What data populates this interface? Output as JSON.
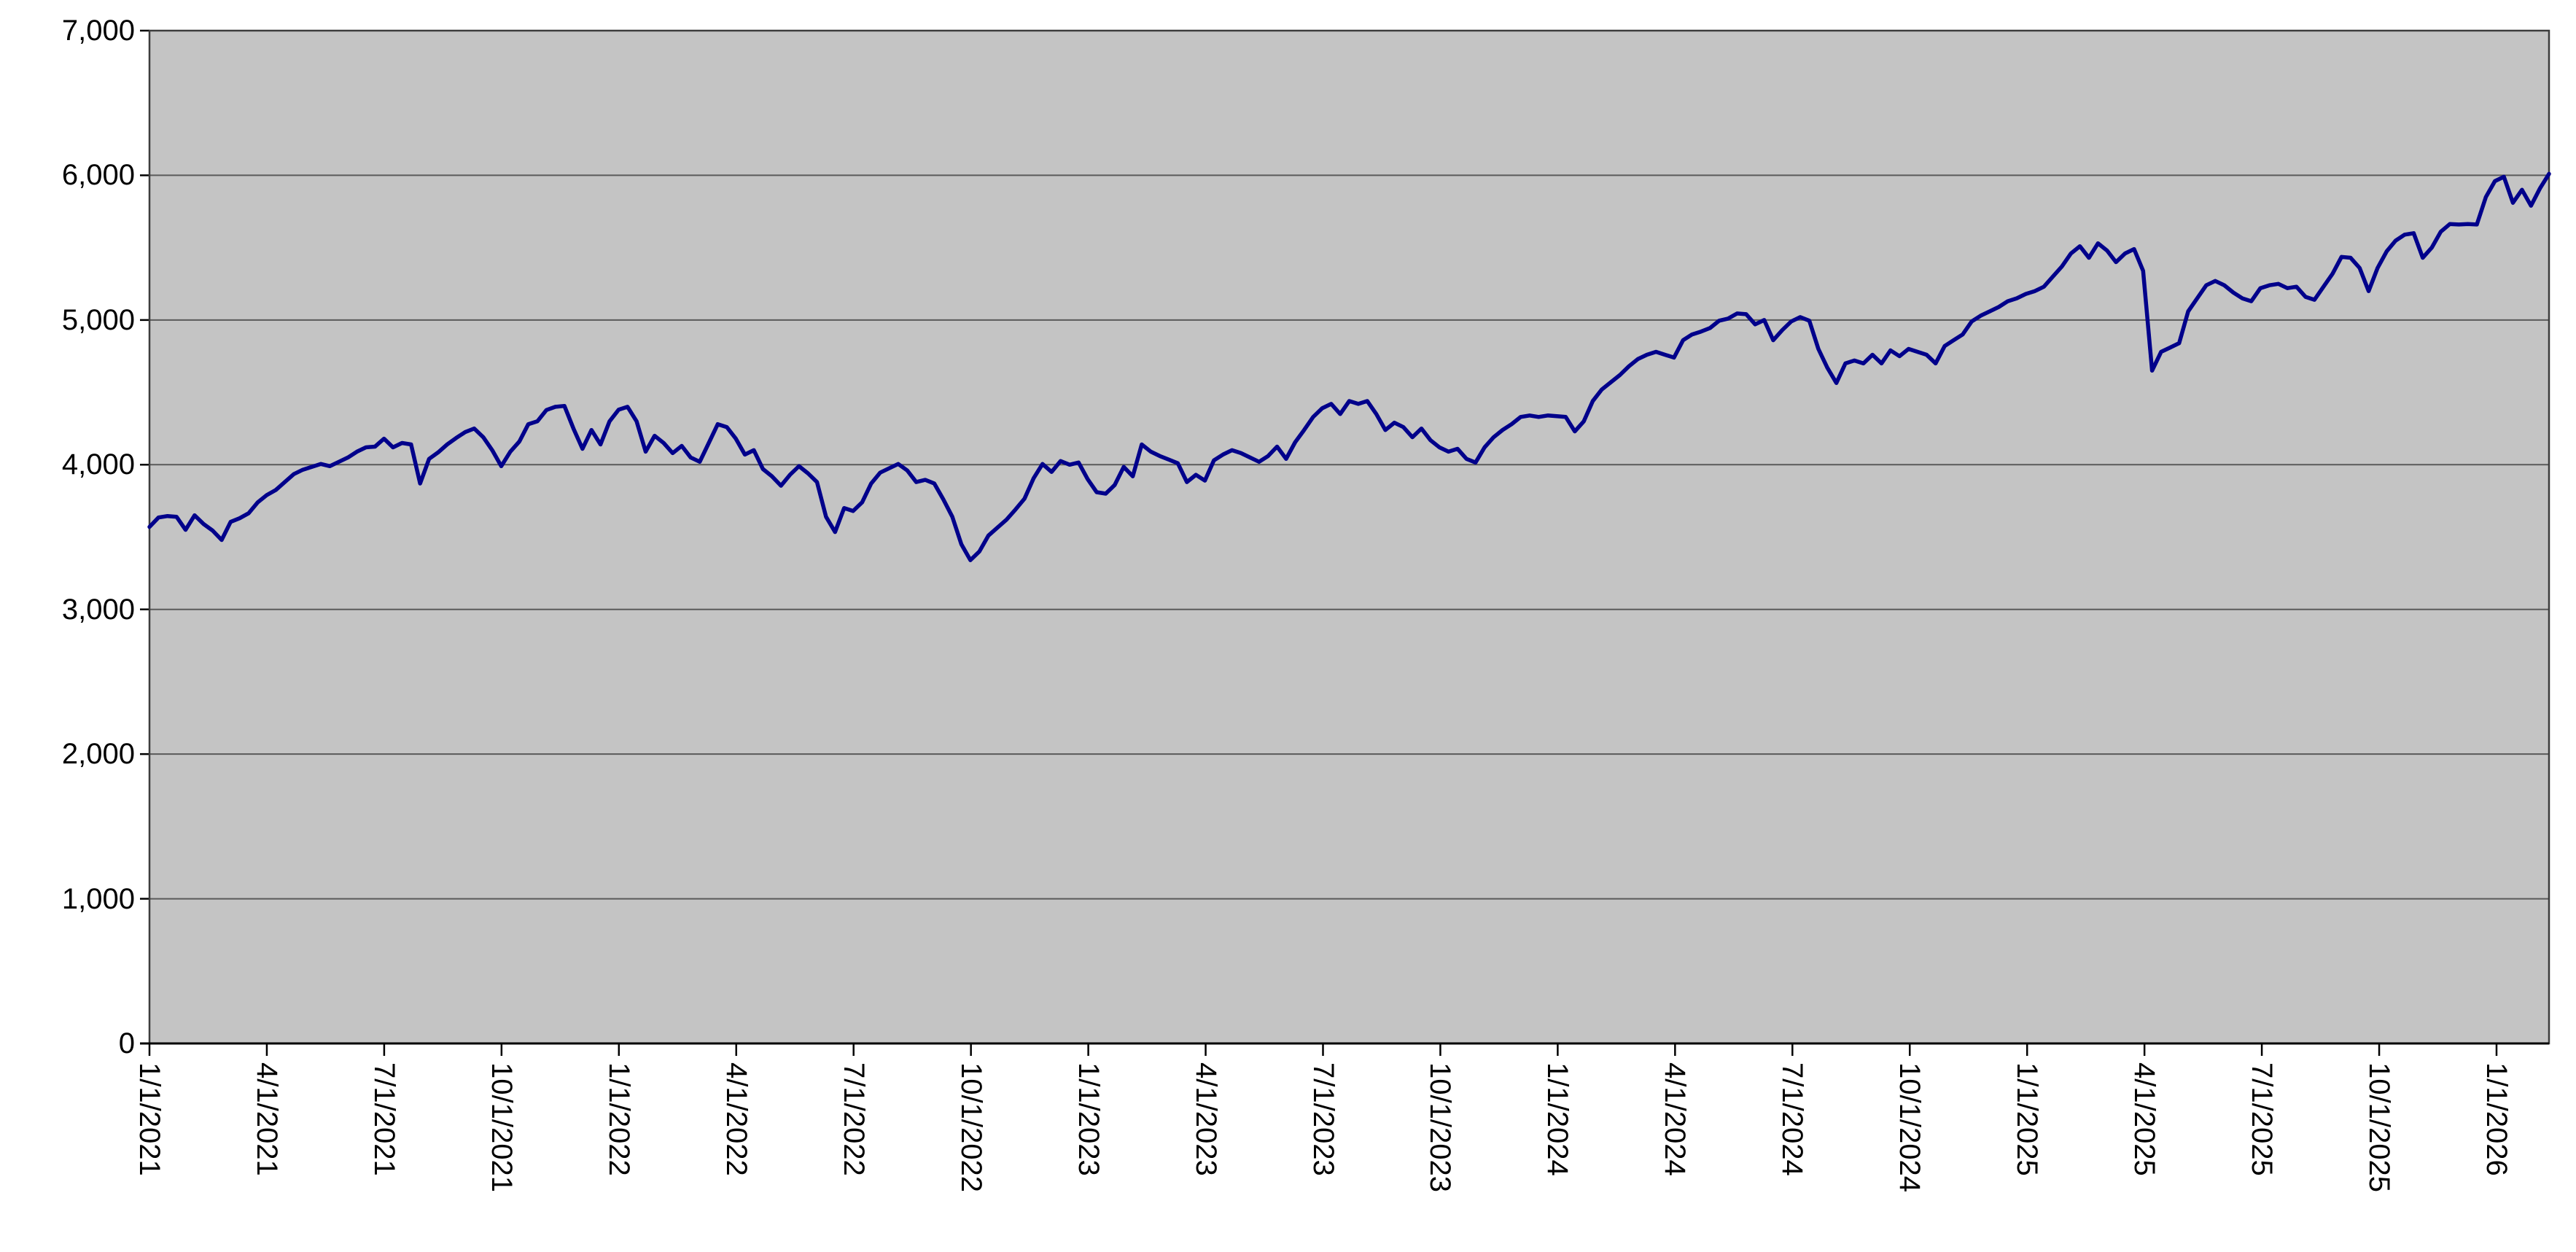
{
  "chart_data": {
    "type": "line",
    "x_start": "1/1/2021",
    "x_interval": "weekly",
    "x_tick_labels": [
      "1/1/2021",
      "4/1/2021",
      "7/1/2021",
      "10/1/2021",
      "1/1/2022",
      "4/1/2022",
      "7/1/2022",
      "10/1/2022",
      "1/1/2023",
      "4/1/2023",
      "7/1/2023",
      "10/1/2023",
      "1/1/2024",
      "4/1/2024",
      "7/1/2024",
      "10/1/2024",
      "1/1/2025",
      "4/1/2025",
      "7/1/2025",
      "10/1/2025",
      "1/1/2026"
    ],
    "y_tick_labels": [
      "0",
      "1,000",
      "2,000",
      "3,000",
      "4,000",
      "5,000",
      "6,000",
      "7,000"
    ],
    "y_ticks": [
      0,
      1000,
      2000,
      3000,
      4000,
      5000,
      6000,
      7000
    ],
    "ylim": [
      0,
      7000
    ],
    "grid": "horizontal",
    "legend_position": "none",
    "series": [
      {
        "color": "#00008b",
        "values": [
          3570,
          3635,
          3645,
          3640,
          3550,
          3650,
          3590,
          3545,
          3480,
          3605,
          3630,
          3665,
          3740,
          3790,
          3825,
          3880,
          3935,
          3965,
          3985,
          4005,
          3990,
          4020,
          4050,
          4090,
          4120,
          4125,
          4180,
          4120,
          4150,
          4140,
          3870,
          4040,
          4085,
          4140,
          4185,
          4225,
          4250,
          4190,
          4100,
          3990,
          4090,
          4160,
          4280,
          4300,
          4378,
          4400,
          4406,
          4250,
          4110,
          4240,
          4140,
          4300,
          4380,
          4400,
          4300,
          4090,
          4200,
          4150,
          4080,
          4130,
          4050,
          4020,
          4150,
          4280,
          4260,
          4180,
          4070,
          4100,
          3970,
          3920,
          3855,
          3930,
          3990,
          3940,
          3880,
          3640,
          3535,
          3700,
          3680,
          3740,
          3870,
          3945,
          3975,
          4005,
          3960,
          3880,
          3895,
          3870,
          3760,
          3640,
          3450,
          3340,
          3400,
          3510,
          3565,
          3620,
          3690,
          3765,
          3905,
          4005,
          3950,
          4025,
          4000,
          4015,
          3900,
          3810,
          3800,
          3860,
          3985,
          3920,
          4140,
          4090,
          4060,
          4035,
          4010,
          3880,
          3930,
          3890,
          4030,
          4070,
          4100,
          4080,
          4050,
          4020,
          4060,
          4125,
          4040,
          4155,
          4240,
          4330,
          4390,
          4420,
          4350,
          4440,
          4420,
          4440,
          4350,
          4240,
          4290,
          4260,
          4190,
          4250,
          4170,
          4120,
          4090,
          4110,
          4040,
          4015,
          4120,
          4190,
          4240,
          4280,
          4330,
          4340,
          4330,
          4340,
          4335,
          4330,
          4230,
          4300,
          4440,
          4520,
          4570,
          4620,
          4680,
          4730,
          4760,
          4780,
          4760,
          4740,
          4860,
          4900,
          4920,
          4945,
          4995,
          5010,
          5045,
          5040,
          4970,
          5000,
          4860,
          4930,
          4990,
          5020,
          4995,
          4800,
          4670,
          4565,
          4700,
          4720,
          4700,
          4760,
          4700,
          4790,
          4750,
          4800,
          4780,
          4760,
          4700,
          4820,
          4860,
          4900,
          4990,
          5030,
          5060,
          5090,
          5130,
          5150,
          5180,
          5200,
          5230,
          5300,
          5370,
          5460,
          5510,
          5430,
          5530,
          5480,
          5400,
          5460,
          5490,
          5340,
          4650,
          4780,
          4810,
          4840,
          5060,
          5150,
          5240,
          5270,
          5240,
          5190,
          5150,
          5130,
          5220,
          5240,
          5250,
          5220,
          5230,
          5160,
          5140,
          5230,
          5320,
          5436,
          5430,
          5360,
          5200,
          5360,
          5474,
          5549,
          5590,
          5600,
          5430,
          5500,
          5610,
          5663,
          5660,
          5663,
          5660,
          5850,
          5960,
          5990,
          5810,
          5900,
          5790,
          5910,
          6010
        ]
      }
    ]
  },
  "colors": {
    "page_background": "#ffffff",
    "plot_background": "#c4c4c4",
    "gridline": "#5a5a5a",
    "plot_border": "#3d3d3d",
    "axis": "#000000",
    "tick": "#000000",
    "label_text": "#000000",
    "series_line": "#00008b"
  }
}
